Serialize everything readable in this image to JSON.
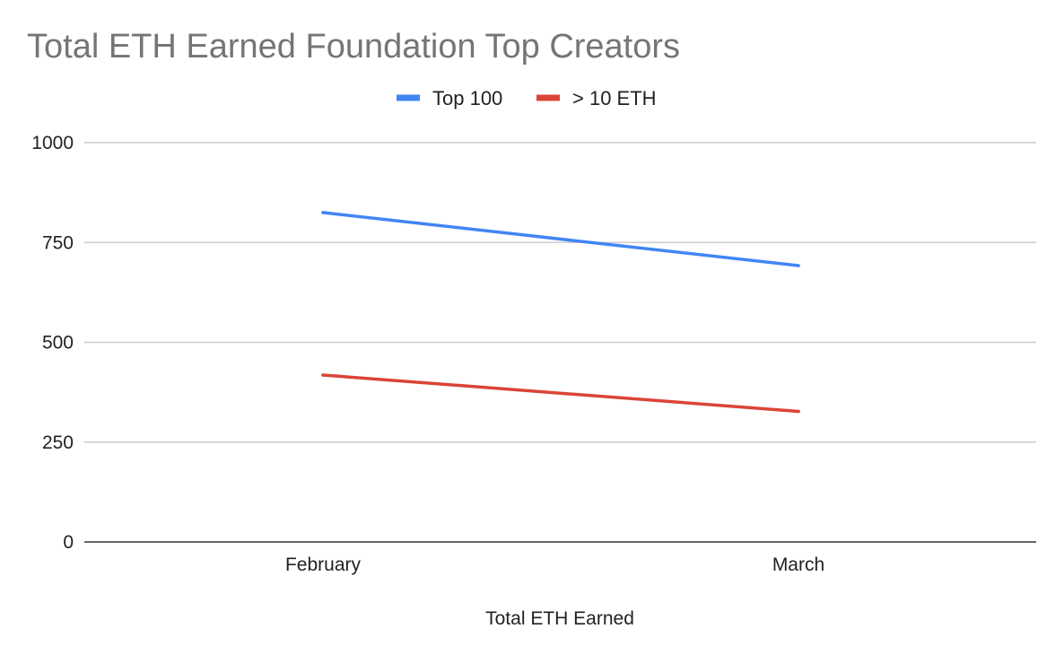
{
  "chart_data": {
    "type": "line",
    "title": "Total ETH Earned Foundation Top Creators",
    "xlabel": "Total ETH Earned",
    "ylabel": "",
    "categories": [
      "February",
      "March"
    ],
    "series": [
      {
        "name": "Top 100",
        "values": [
          825,
          692
        ],
        "color": "#4285f4"
      },
      {
        "name": "> 10 ETH",
        "values": [
          418,
          327
        ],
        "color": "#db4437"
      }
    ],
    "ylim": [
      0,
      1000
    ],
    "yticks": [
      "0",
      "250",
      "500",
      "750",
      "1000"
    ],
    "ytick_values": [
      0,
      250,
      500,
      750,
      1000
    ],
    "grid": true,
    "legend_position": "top-center"
  }
}
